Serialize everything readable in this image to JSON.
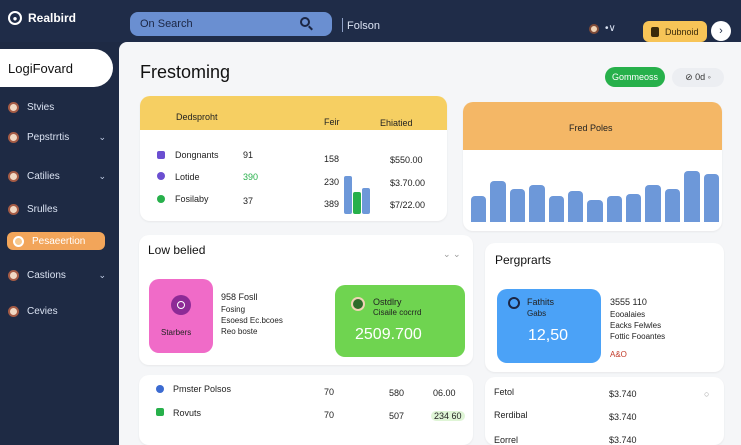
{
  "topbar": {
    "app_name": "Realbird",
    "search_placeholder": "On Search",
    "title": "Folson",
    "upgrade_label": "Dubnoid",
    "dots": "•∨",
    "circle_icon": "›"
  },
  "sidebar": {
    "brand": "LogiFovard",
    "items": [
      {
        "label": "Stvies",
        "chev": ""
      },
      {
        "label": "Pepstrrtis",
        "chev": "⌄"
      },
      {
        "label": "Catilies",
        "chev": "⌄"
      },
      {
        "label": "Srulles",
        "chev": ""
      },
      {
        "label": "Pesaeertion",
        "chev": ""
      },
      {
        "label": "Castions",
        "chev": "⌄"
      },
      {
        "label": "Cevies",
        "chev": ""
      }
    ]
  },
  "main": {
    "title": "Frestoming",
    "green_button": "Gommeoss",
    "small_pill": "⊘ 0d ◦"
  },
  "card1": {
    "head": {
      "a": "Dedsproht",
      "b": "Feir",
      "c": "Ehiatied"
    },
    "rows": [
      {
        "name": "Dongnants",
        "v1": "91",
        "v2": "158",
        "v3": "$550.00"
      },
      {
        "name": "Lotide",
        "v1": "390",
        "v2": "230",
        "v3": "$3.70.00"
      },
      {
        "name": "Fosilaby",
        "v1": "37",
        "v2": "389",
        "v3": "$7/22.00"
      }
    ],
    "mini_bars": [
      0.8,
      0.45,
      0.55
    ]
  },
  "card2": {
    "title": "Fred Poles",
    "bars": [
      0.42,
      0.66,
      0.54,
      0.6,
      0.42,
      0.5,
      0.36,
      0.42,
      0.45,
      0.6,
      0.54,
      0.82,
      0.77
    ]
  },
  "card3": {
    "title": "Low belied",
    "chev": "⌄ ⌄",
    "pink_label": "Starbers",
    "lines": [
      "958 Fosll",
      "Fosing",
      "Esoesd Ec.bcoes",
      "Reo boste"
    ],
    "green_title": "Ostdlry",
    "green_sub": "Cisaile cocrrd",
    "green_value": "2509.700"
  },
  "card4": {
    "title": "Pergprarts",
    "blue_title": "Fathits",
    "blue_sub": "Gabs",
    "blue_value": "12,50",
    "lines": [
      "3555 110",
      "Eooalaies",
      "Eacks Felwles",
      "Fottic Fooantes"
    ],
    "badge": "A&O"
  },
  "card5": {
    "rows": [
      {
        "name": "Pmster Polsos",
        "a": "70",
        "b": "580",
        "c": "06.00"
      },
      {
        "name": "Rovuts",
        "a": "70",
        "b": "507",
        "c": "234 60"
      }
    ]
  },
  "card6": {
    "rows": [
      {
        "name": "Fetol",
        "value": "$3.740",
        "end": "○"
      },
      {
        "name": "Rerdibal",
        "value": "$3.740",
        "end": ""
      },
      {
        "name": "Eorrel",
        "value": "$3.740",
        "end": ""
      }
    ]
  }
}
